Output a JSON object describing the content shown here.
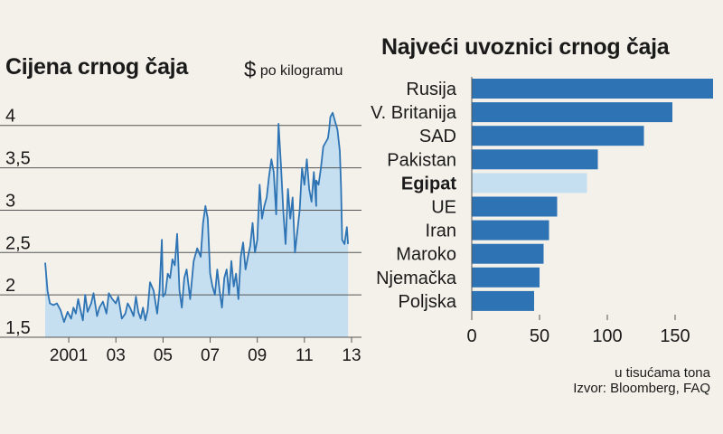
{
  "left_title": "Cijena crnog čaja",
  "left_unit_symbol": "$",
  "left_unit_text": "po kilogramu",
  "right_title": "Najveći uvoznici crnog čaja",
  "right_note": "u tisućama tona",
  "source": "Izvor: Bloomberg, FAQ",
  "colors": {
    "background": "#f4f1ea",
    "bar": "#2e74b5",
    "bar_highlight": "#c5dff0",
    "line": "#2e74b5",
    "area_fill": "#c5dff0",
    "grid": "#555555"
  },
  "chart_data": [
    {
      "type": "area",
      "y_ticks": [
        "4",
        "3,5",
        "3",
        "2,5",
        "2",
        "1,5"
      ],
      "y_tick_values": [
        4,
        3.5,
        3,
        2.5,
        2,
        1.5
      ],
      "ylim": [
        1.5,
        4.2
      ],
      "x_tick_labels": [
        "2001",
        "03",
        "05",
        "07",
        "09",
        "11",
        "13"
      ],
      "x_tick_years": [
        2001,
        2003,
        2005,
        2007,
        2009,
        2011,
        2013
      ],
      "xlim": [
        2000.0,
        2013.0
      ],
      "x": [
        2000.0,
        2000.1,
        2000.2,
        2000.35,
        2000.5,
        2000.65,
        2000.8,
        2000.95,
        2001.1,
        2001.2,
        2001.3,
        2001.4,
        2001.5,
        2001.6,
        2001.7,
        2001.8,
        2001.95,
        2002.05,
        2002.2,
        2002.3,
        2002.45,
        2002.6,
        2002.7,
        2002.85,
        2003.0,
        2003.1,
        2003.25,
        2003.4,
        2003.5,
        2003.6,
        2003.75,
        2003.85,
        2003.95,
        2004.05,
        2004.15,
        2004.25,
        2004.35,
        2004.45,
        2004.6,
        2004.75,
        2004.85,
        2004.95,
        2005.0,
        2005.1,
        2005.2,
        2005.3,
        2005.4,
        2005.5,
        2005.6,
        2005.7,
        2005.8,
        2005.9,
        2006.0,
        2006.15,
        2006.3,
        2006.45,
        2006.6,
        2006.7,
        2006.8,
        2006.9,
        2007.0,
        2007.1,
        2007.2,
        2007.3,
        2007.4,
        2007.5,
        2007.6,
        2007.7,
        2007.8,
        2007.9,
        2008.0,
        2008.1,
        2008.2,
        2008.3,
        2008.4,
        2008.5,
        2008.6,
        2008.7,
        2008.8,
        2008.9,
        2009.0,
        2009.1,
        2009.2,
        2009.3,
        2009.4,
        2009.5,
        2009.6,
        2009.7,
        2009.8,
        2009.9,
        2010.0,
        2010.1,
        2010.2,
        2010.3,
        2010.4,
        2010.5,
        2010.6,
        2010.7,
        2010.8,
        2010.9,
        2011.0,
        2011.1,
        2011.2,
        2011.3,
        2011.4,
        2011.5,
        2011.6,
        2011.7,
        2011.8,
        2011.9,
        2012.0,
        2012.1,
        2012.2,
        2012.3,
        2012.4,
        2012.5,
        2012.6,
        2012.7,
        2012.8,
        2012.9,
        2013.0
      ],
      "y": [
        2.38,
        2.05,
        1.9,
        1.88,
        1.9,
        1.82,
        1.68,
        1.8,
        1.72,
        1.85,
        1.78,
        1.95,
        1.82,
        1.7,
        2.0,
        1.8,
        1.9,
        2.02,
        1.75,
        1.85,
        1.92,
        1.78,
        2.02,
        1.95,
        1.9,
        1.98,
        1.72,
        1.78,
        1.9,
        1.85,
        1.75,
        1.98,
        1.8,
        1.72,
        1.85,
        1.7,
        1.82,
        2.15,
        2.05,
        1.78,
        2.05,
        2.65,
        1.98,
        2.02,
        2.25,
        2.2,
        2.42,
        2.35,
        2.72,
        2.05,
        1.85,
        2.2,
        2.3,
        1.95,
        2.4,
        2.55,
        2.45,
        2.85,
        3.05,
        2.9,
        2.25,
        2.1,
        2.0,
        2.3,
        2.05,
        1.85,
        2.2,
        2.3,
        2.0,
        2.4,
        2.1,
        2.25,
        1.95,
        2.45,
        2.62,
        2.3,
        2.45,
        2.58,
        2.85,
        2.5,
        2.65,
        3.3,
        2.9,
        3.05,
        3.15,
        3.4,
        3.6,
        3.45,
        2.95,
        4.02,
        3.55,
        3.0,
        2.6,
        3.25,
        2.9,
        3.15,
        2.5,
        2.75,
        3.0,
        3.5,
        3.3,
        3.6,
        3.25,
        3.1,
        3.45,
        3.05,
        2.9,
        3.4,
        3.55,
        3.2,
        3.1,
        3.3,
        3.55,
        3.45,
        3.6,
        3.35,
        3.45,
        3.35,
        3.15,
        3.6,
        3.3
      ],
      "final_segment_x": [
        2011.5,
        2011.6,
        2011.7,
        2011.8,
        2011.9,
        2012.0,
        2012.05,
        2012.1,
        2012.2,
        2012.3,
        2012.4,
        2012.5,
        2012.55,
        2012.6,
        2012.7,
        2012.8,
        2012.85
      ],
      "final_segment_y": [
        3.35,
        3.3,
        3.5,
        3.75,
        3.8,
        3.85,
        3.95,
        4.1,
        4.15,
        4.05,
        3.95,
        3.7,
        3.3,
        2.65,
        2.6,
        2.8,
        2.6
      ]
    },
    {
      "type": "bar",
      "orientation": "horizontal",
      "categories": [
        "Rusija",
        "V. Britanija",
        "SAD",
        "Pakistan",
        "Egipat",
        "UE",
        "Iran",
        "Maroko",
        "Njemačka",
        "Poljska"
      ],
      "values": [
        178,
        148,
        127,
        93,
        85,
        63,
        57,
        53,
        50,
        46
      ],
      "highlight": "Egipat",
      "x_ticks": [
        0,
        50,
        100,
        150
      ],
      "x_tick_labels": [
        "0",
        "50",
        "100",
        "150"
      ],
      "xlim": [
        0,
        180
      ],
      "xlabel": "u tisućama tona"
    }
  ]
}
